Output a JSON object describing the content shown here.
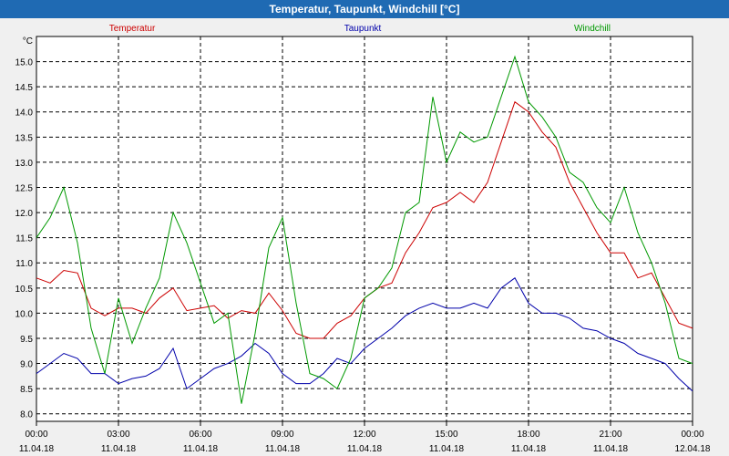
{
  "window": {
    "title": "Temperatur, Taupunkt, Windchill [°C]"
  },
  "chart_data": {
    "type": "line",
    "title": "Temperatur, Taupunkt, Windchill [°C]",
    "ylabel": "°C",
    "xlabel": "",
    "ylim": [
      7.85,
      15.5
    ],
    "xlim": [
      0,
      24
    ],
    "grid": true,
    "legend_placement": "top",
    "y_ticks": [
      "8.0",
      "8.5",
      "9.0",
      "9.5",
      "10.0",
      "10.5",
      "11.0",
      "11.5",
      "12.0",
      "12.5",
      "13.0",
      "13.5",
      "14.0",
      "14.5",
      "15.0"
    ],
    "x_ticks": [
      {
        "time": "00:00",
        "date": "11.04.18"
      },
      {
        "time": "03:00",
        "date": "11.04.18"
      },
      {
        "time": "06:00",
        "date": "11.04.18"
      },
      {
        "time": "09:00",
        "date": "11.04.18"
      },
      {
        "time": "12:00",
        "date": "11.04.18"
      },
      {
        "time": "15:00",
        "date": "11.04.18"
      },
      {
        "time": "18:00",
        "date": "11.04.18"
      },
      {
        "time": "21:00",
        "date": "11.04.18"
      },
      {
        "time": "00:00",
        "date": "12.04.18"
      }
    ],
    "x": [
      0,
      0.5,
      1,
      1.5,
      2,
      2.5,
      3,
      3.5,
      4,
      4.5,
      5,
      5.5,
      6,
      6.5,
      7,
      7.5,
      8,
      8.5,
      9,
      9.5,
      10,
      10.5,
      11,
      11.5,
      12,
      12.5,
      13,
      13.5,
      14,
      14.5,
      15,
      15.5,
      16,
      16.5,
      17,
      17.5,
      18,
      18.5,
      19,
      19.5,
      20,
      20.5,
      21,
      21.5,
      22,
      22.5,
      23,
      23.5,
      24
    ],
    "series": [
      {
        "name": "Temperatur",
        "color": "#cc0000",
        "values": [
          10.7,
          10.6,
          10.85,
          10.8,
          10.1,
          9.95,
          10.1,
          10.1,
          10.0,
          10.3,
          10.5,
          10.05,
          10.1,
          10.15,
          9.9,
          10.05,
          10.0,
          10.4,
          10.05,
          9.6,
          9.5,
          9.5,
          9.8,
          9.95,
          10.3,
          10.5,
          10.6,
          11.2,
          11.6,
          12.1,
          12.2,
          12.4,
          12.2,
          12.6,
          13.4,
          14.2,
          14.0,
          13.6,
          13.3,
          12.6,
          12.1,
          11.6,
          11.2,
          11.2,
          10.7,
          10.8,
          10.3,
          9.8,
          9.7
        ]
      },
      {
        "name": "Taupunkt",
        "color": "#0000aa",
        "values": [
          8.8,
          9.0,
          9.2,
          9.1,
          8.8,
          8.8,
          8.6,
          8.7,
          8.75,
          8.9,
          9.3,
          8.5,
          8.7,
          8.9,
          9.0,
          9.15,
          9.4,
          9.2,
          8.8,
          8.6,
          8.6,
          8.8,
          9.1,
          9.0,
          9.3,
          9.5,
          9.7,
          9.95,
          10.1,
          10.2,
          10.1,
          10.1,
          10.2,
          10.1,
          10.5,
          10.7,
          10.2,
          10.0,
          10.0,
          9.9,
          9.7,
          9.65,
          9.5,
          9.4,
          9.2,
          9.1,
          9.0,
          8.7,
          8.45
        ]
      },
      {
        "name": "Windchill",
        "color": "#009900",
        "values": [
          11.5,
          11.9,
          12.5,
          11.4,
          9.7,
          8.8,
          10.3,
          9.4,
          10.1,
          10.7,
          12.0,
          11.4,
          10.6,
          9.8,
          10.0,
          8.2,
          9.6,
          11.3,
          11.9,
          10.2,
          8.8,
          8.7,
          8.5,
          9.1,
          10.3,
          10.5,
          10.9,
          12.0,
          12.2,
          14.3,
          13.0,
          13.6,
          13.4,
          13.5,
          14.3,
          15.1,
          14.2,
          13.9,
          13.5,
          12.8,
          12.6,
          12.1,
          11.8,
          12.5,
          11.6,
          11.0,
          10.2,
          9.1,
          9.0
        ]
      }
    ]
  }
}
